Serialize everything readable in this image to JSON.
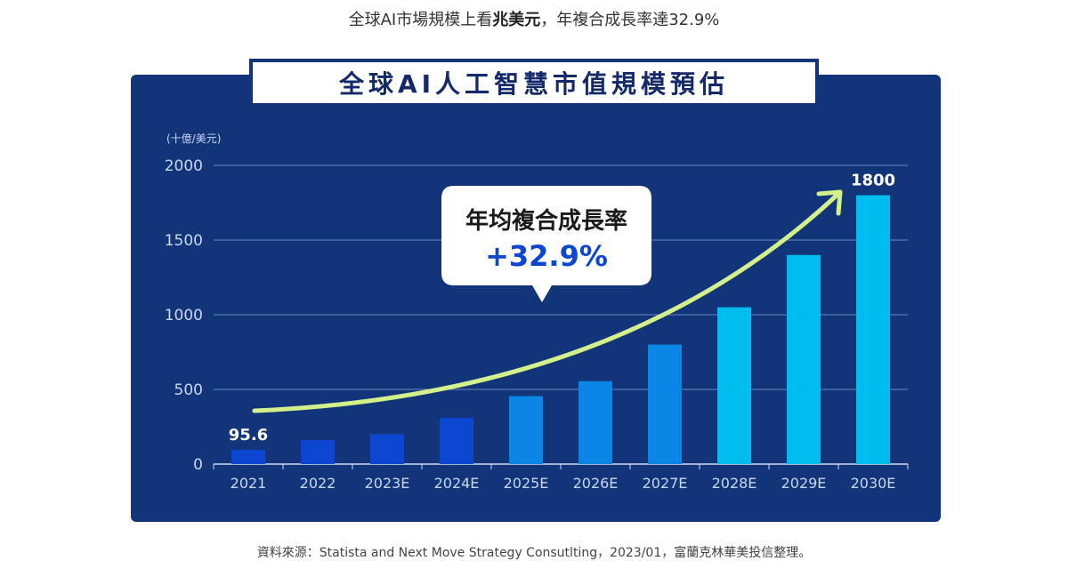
{
  "headline": {
    "part1": "全球AI市場規模上看",
    "bold": "兆美元",
    "part2": "，年複合成長率達32.9%"
  },
  "footer": "資料來源：Statista and Next Move Strategy Consutlting，2023/01，富蘭克林華美投信整理。",
  "chart_data": {
    "type": "bar",
    "title": "全球AI人工智慧市值規模預估",
    "unit_label": "(十億/美元)",
    "categories": [
      "2021",
      "2022",
      "2023E",
      "2024E",
      "2025E",
      "2026E",
      "2027E",
      "2028E",
      "2029E",
      "2030E"
    ],
    "values": [
      95.6,
      160,
      200,
      310,
      455,
      555,
      800,
      1050,
      1400,
      1800
    ],
    "ylim": [
      0,
      2000
    ],
    "yticks": [
      0,
      500,
      1000,
      1500,
      2000
    ],
    "grid": true,
    "data_labels": [
      {
        "index": 0,
        "text": "95.6"
      },
      {
        "index": 9,
        "text": "1800"
      }
    ],
    "bar_colors": [
      "#0d47d1",
      "#0d47d1",
      "#0d47d1",
      "#0d47d1",
      "#0b86e6",
      "#0b86e6",
      "#0b86e6",
      "#00bdf0",
      "#00bdf0",
      "#00bdf0"
    ],
    "annotation": {
      "label": "年均複合成長率",
      "value": "+32.9%"
    },
    "trend_color": "#d4f08a"
  }
}
